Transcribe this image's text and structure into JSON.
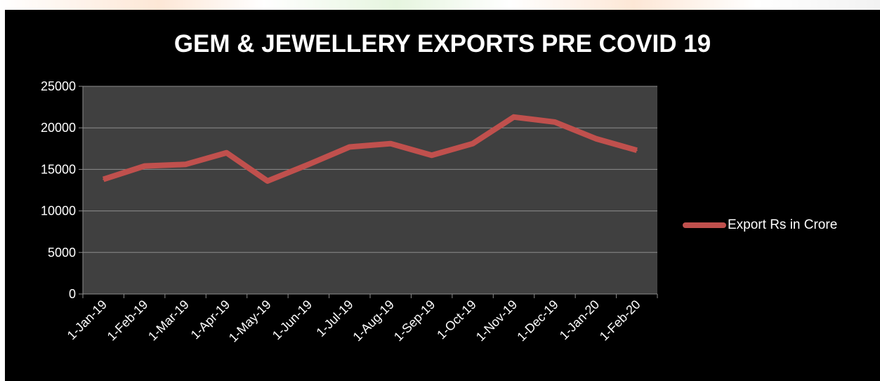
{
  "chart_data": {
    "type": "line",
    "title": "GEM & JEWELLERY EXPORTS PRE COVID 19",
    "xlabel": "",
    "ylabel": "",
    "ylim": [
      0,
      25000
    ],
    "yticks": [
      0,
      5000,
      10000,
      15000,
      20000,
      25000
    ],
    "grid": true,
    "legend_position": "right",
    "categories": [
      "1-Jan-19",
      "1-Feb-19",
      "1-Mar-19",
      "1-Apr-19",
      "1-May-19",
      "1-Jun-19",
      "1-Jul-19",
      "1-Aug-19",
      "1-Sep-19",
      "1-Oct-19",
      "1-Nov-19",
      "1-Dec-19",
      "1-Jan-20",
      "1-Feb-20"
    ],
    "series": [
      {
        "name": "Export Rs in Crore",
        "color": "#c0504d",
        "values": [
          13800,
          15400,
          15600,
          17000,
          13600,
          15600,
          17700,
          18100,
          16700,
          18100,
          21300,
          20700,
          18700,
          17300
        ]
      }
    ]
  },
  "colors": {
    "background": "#000000",
    "plot_area": "#404040",
    "gridline": "#8c8c8c",
    "text": "#ffffff"
  }
}
